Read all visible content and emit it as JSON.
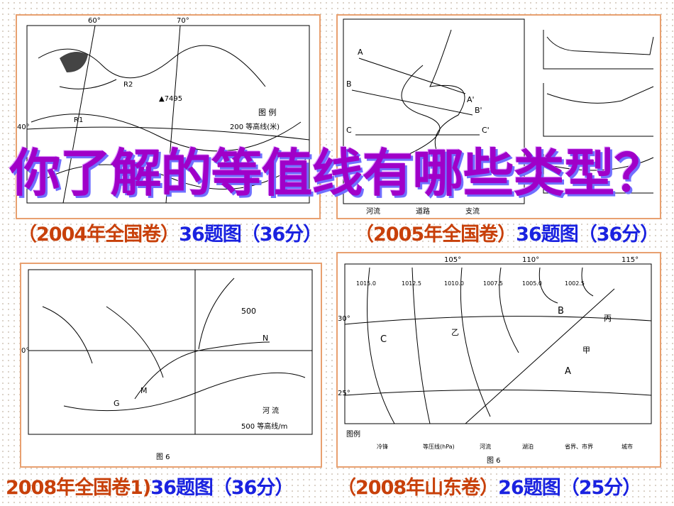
{
  "title": "你了解的等值线有哪些类型？",
  "captions": [
    {
      "year": "（2004年全国卷）",
      "rest": "36题图（36分）"
    },
    {
      "year": "（2005年全国卷）",
      "rest": "36题图（36分）"
    },
    {
      "year": "2008年全国卷1)",
      "rest": "36题图（36分）"
    },
    {
      "year": "（2008年山东卷）",
      "rest": "26题图（25分）"
    }
  ],
  "maps": {
    "m1": {
      "lon1": "60°",
      "lon2": "70°",
      "lat": "40°",
      "legend": "图 例",
      "contour": "200 等高线(米)",
      "peak": "▲7495",
      "r1": "R1",
      "r2": "R2"
    },
    "m2": {
      "profile_labels": [
        "A",
        "A'",
        "B",
        "B'",
        "C",
        "C'"
      ],
      "river": "河流",
      "road": "道路",
      "stream": "支流"
    },
    "m3": {
      "contour": "500",
      "lat": "0°",
      "n": "N",
      "m": "M",
      "g": "G",
      "legend_river": "河 流",
      "legend_contour": "500 等高线/m",
      "fig": "图 6"
    },
    "m4": {
      "lons": [
        "105°",
        "110°",
        "115°"
      ],
      "lats": [
        "30°",
        "25°"
      ],
      "labels": [
        "A",
        "B",
        "C",
        "乙",
        "甲",
        "丙"
      ],
      "isobars": [
        "1015.0",
        "1012.5",
        "1010.0",
        "1007.5",
        "1005.0",
        "1002.5"
      ],
      "legend": "图例",
      "legend_items": [
        "冷锋",
        "等压线(hPa)",
        "河流",
        "湖泊",
        "省界、市界",
        "城市"
      ],
      "fig": "图 6"
    }
  }
}
